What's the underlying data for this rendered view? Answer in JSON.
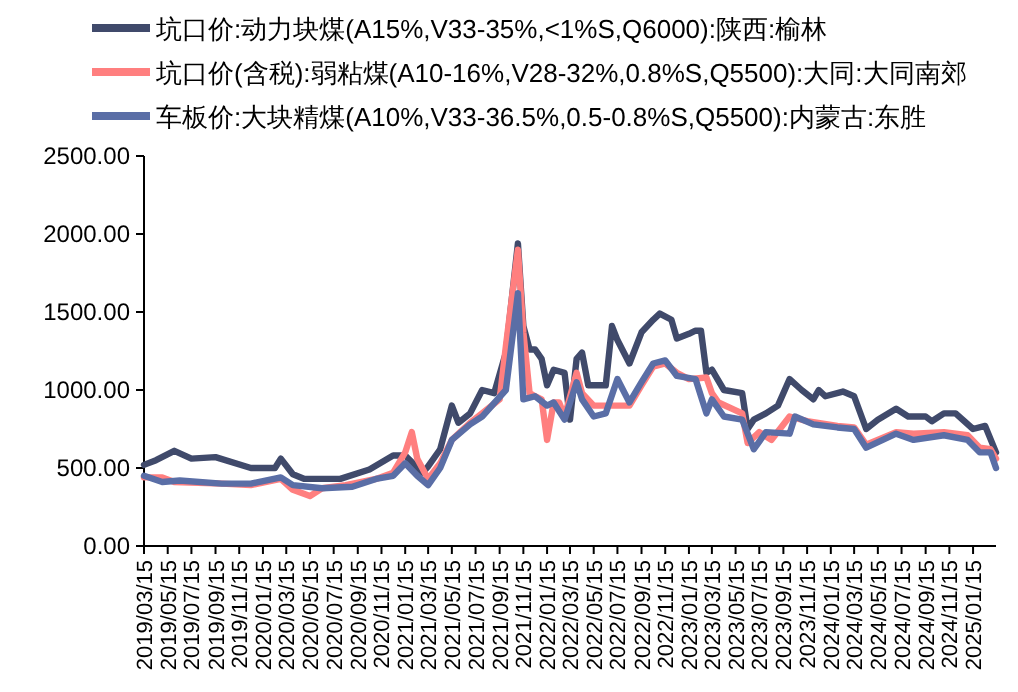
{
  "chart_data": {
    "type": "line",
    "legend": "top",
    "grid": false,
    "marker": "none",
    "line_style": "solid",
    "xlim": [
      "2019-03-15",
      "2025-03-15"
    ],
    "ylim": [
      0,
      2500
    ],
    "yticks": [
      {
        "value": 0,
        "label": "0.00"
      },
      {
        "value": 500,
        "label": "500.00"
      },
      {
        "value": 1000,
        "label": "1000.00"
      },
      {
        "value": 1500,
        "label": "1500.00"
      },
      {
        "value": 2000,
        "label": "2000.00"
      },
      {
        "value": 2500,
        "label": "2500.00"
      }
    ],
    "xticks": [
      {
        "value": "2019-03-15",
        "label": "2019/03/15"
      },
      {
        "value": "2019-05-15",
        "label": "2019/05/15"
      },
      {
        "value": "2019-07-15",
        "label": "2019/07/15"
      },
      {
        "value": "2019-09-15",
        "label": "2019/09/15"
      },
      {
        "value": "2019-11-15",
        "label": "2019/11/15"
      },
      {
        "value": "2020-01-15",
        "label": "2020/01/15"
      },
      {
        "value": "2020-03-15",
        "label": "2020/03/15"
      },
      {
        "value": "2020-05-15",
        "label": "2020/05/15"
      },
      {
        "value": "2020-07-15",
        "label": "2020/07/15"
      },
      {
        "value": "2020-09-15",
        "label": "2020/09/15"
      },
      {
        "value": "2020-11-15",
        "label": "2020/11/15"
      },
      {
        "value": "2021-01-15",
        "label": "2021/01/15"
      },
      {
        "value": "2021-03-15",
        "label": "2021/03/15"
      },
      {
        "value": "2021-05-15",
        "label": "2021/05/15"
      },
      {
        "value": "2021-07-15",
        "label": "2021/07/15"
      },
      {
        "value": "2021-09-15",
        "label": "2021/09/15"
      },
      {
        "value": "2021-11-15",
        "label": "2021/11/15"
      },
      {
        "value": "2022-01-15",
        "label": "2022/01/15"
      },
      {
        "value": "2022-03-15",
        "label": "2022/03/15"
      },
      {
        "value": "2022-05-15",
        "label": "2022/05/15"
      },
      {
        "value": "2022-07-15",
        "label": "2022/07/15"
      },
      {
        "value": "2022-09-15",
        "label": "2022/09/15"
      },
      {
        "value": "2022-11-15",
        "label": "2022/11/15"
      },
      {
        "value": "2023-01-15",
        "label": "2023/01/15"
      },
      {
        "value": "2023-03-15",
        "label": "2023/03/15"
      },
      {
        "value": "2023-05-15",
        "label": "2023/05/15"
      },
      {
        "value": "2023-07-15",
        "label": "2023/07/15"
      },
      {
        "value": "2023-09-15",
        "label": "2023/09/15"
      },
      {
        "value": "2023-11-15",
        "label": "2023/11/15"
      },
      {
        "value": "2024-01-15",
        "label": "2024/01/15"
      },
      {
        "value": "2024-03-15",
        "label": "2024/03/15"
      },
      {
        "value": "2024-05-15",
        "label": "2024/05/15"
      },
      {
        "value": "2024-07-15",
        "label": "2024/07/15"
      },
      {
        "value": "2024-09-15",
        "label": "2024/09/15"
      },
      {
        "value": "2024-11-15",
        "label": "2024/11/15"
      },
      {
        "value": "2025-01-15",
        "label": "2025/01/15"
      }
    ],
    "series": [
      {
        "name": "坑口价:动力块煤(A15%,V33-35%,<1%S,Q6000):陕西:榆林",
        "color": "#404a6b",
        "x": [
          "2019-03-15",
          "2019-04-15",
          "2019-06-01",
          "2019-07-15",
          "2019-09-15",
          "2019-12-15",
          "2020-02-15",
          "2020-03-01",
          "2020-04-01",
          "2020-05-01",
          "2020-08-01",
          "2020-10-15",
          "2020-12-15",
          "2021-01-15",
          "2021-03-01",
          "2021-03-15",
          "2021-04-15",
          "2021-05-15",
          "2021-06-01",
          "2021-07-01",
          "2021-08-01",
          "2021-09-01",
          "2021-10-01",
          "2021-11-01",
          "2021-11-15",
          "2021-12-01",
          "2021-12-15",
          "2022-01-01",
          "2022-01-15",
          "2022-02-01",
          "2022-03-01",
          "2022-03-15",
          "2022-04-01",
          "2022-04-15",
          "2022-05-01",
          "2022-06-15",
          "2022-07-01",
          "2022-07-15",
          "2022-08-15",
          "2022-09-15",
          "2022-10-15",
          "2022-11-01",
          "2022-12-01",
          "2022-12-15",
          "2023-01-15",
          "2023-02-01",
          "2023-02-15",
          "2023-03-01",
          "2023-03-15",
          "2023-04-15",
          "2023-06-01",
          "2023-06-15",
          "2023-07-01",
          "2023-08-01",
          "2023-09-01",
          "2023-10-01",
          "2023-11-01",
          "2023-12-01",
          "2023-12-15",
          "2024-01-01",
          "2024-02-15",
          "2024-03-15",
          "2024-04-15",
          "2024-05-15",
          "2024-07-01",
          "2024-08-01",
          "2024-09-15",
          "2024-10-01",
          "2024-11-01",
          "2024-12-01",
          "2025-01-15",
          "2025-02-15",
          "2025-03-15"
        ],
        "values": [
          520,
          550,
          610,
          560,
          570,
          500,
          500,
          560,
          460,
          430,
          430,
          490,
          580,
          580,
          470,
          510,
          620,
          900,
          790,
          850,
          1000,
          980,
          1240,
          1940,
          1410,
          1260,
          1260,
          1200,
          1030,
          1130,
          1110,
          810,
          1200,
          1240,
          1030,
          1030,
          1410,
          1320,
          1170,
          1370,
          1450,
          1490,
          1450,
          1330,
          1360,
          1380,
          1380,
          1110,
          1130,
          1000,
          980,
          750,
          810,
          850,
          900,
          1070,
          1000,
          940,
          1000,
          960,
          990,
          960,
          750,
          810,
          880,
          830,
          830,
          800,
          850,
          850,
          750,
          770,
          600
        ]
      },
      {
        "name": "坑口价(含税):弱粘煤(A10-16%,V28-32%,0.8%S,Q5500):大同:大同南郊",
        "color": "#ff7f7f",
        "x": [
          "2019-03-15",
          "2019-05-01",
          "2019-06-01",
          "2019-10-01",
          "2019-12-15",
          "2020-03-01",
          "2020-04-01",
          "2020-05-15",
          "2020-06-15",
          "2020-08-15",
          "2020-11-01",
          "2020-12-15",
          "2021-01-15",
          "2021-02-01",
          "2021-02-15",
          "2021-03-15",
          "2021-04-15",
          "2021-05-15",
          "2021-07-01",
          "2021-08-01",
          "2021-09-15",
          "2021-10-01",
          "2021-11-01",
          "2021-11-15",
          "2021-12-01",
          "2021-12-15",
          "2022-01-01",
          "2022-01-15",
          "2022-02-01",
          "2022-02-15",
          "2022-03-01",
          "2022-04-01",
          "2022-04-15",
          "2022-05-15",
          "2022-06-15",
          "2022-08-15",
          "2022-09-15",
          "2022-10-15",
          "2022-11-15",
          "2022-12-15",
          "2023-01-15",
          "2023-03-01",
          "2023-03-15",
          "2023-04-01",
          "2023-06-01",
          "2023-06-15",
          "2023-07-15",
          "2023-08-15",
          "2023-10-01",
          "2023-11-15",
          "2024-02-01",
          "2024-03-15",
          "2024-04-15",
          "2024-07-01",
          "2024-08-15",
          "2024-11-01",
          "2025-01-01",
          "2025-02-01",
          "2025-03-01",
          "2025-03-15"
        ],
        "values": [
          440,
          440,
          410,
          400,
          390,
          430,
          360,
          320,
          370,
          390,
          430,
          470,
          600,
          730,
          560,
          430,
          530,
          680,
          790,
          850,
          940,
          1280,
          1900,
          1370,
          980,
          960,
          940,
          680,
          920,
          920,
          830,
          1110,
          980,
          900,
          900,
          900,
          1030,
          1150,
          1170,
          1110,
          1070,
          1080,
          980,
          920,
          850,
          660,
          730,
          680,
          830,
          800,
          770,
          760,
          650,
          730,
          720,
          730,
          710,
          630,
          620,
          560
        ]
      },
      {
        "name": "车板价:大块精煤(A10%,V33-36.5%,0.5-0.8%S,Q5500):内蒙古:东胜",
        "color": "#5a6ea6",
        "x": [
          "2019-03-15",
          "2019-05-01",
          "2019-06-15",
          "2019-10-01",
          "2019-12-15",
          "2020-03-01",
          "2020-04-01",
          "2020-06-15",
          "2020-09-01",
          "2020-11-01",
          "2020-12-15",
          "2021-01-15",
          "2021-02-15",
          "2021-03-15",
          "2021-04-15",
          "2021-05-15",
          "2021-07-01",
          "2021-08-01",
          "2021-10-01",
          "2021-11-01",
          "2021-11-15",
          "2021-12-15",
          "2022-01-15",
          "2022-02-01",
          "2022-03-01",
          "2022-04-01",
          "2022-04-15",
          "2022-05-15",
          "2022-06-15",
          "2022-07-15",
          "2022-08-15",
          "2022-09-15",
          "2022-10-15",
          "2022-11-15",
          "2022-12-15",
          "2023-02-01",
          "2023-02-15",
          "2023-03-01",
          "2023-03-15",
          "2023-04-15",
          "2023-06-01",
          "2023-07-01",
          "2023-08-01",
          "2023-10-01",
          "2023-10-15",
          "2023-12-01",
          "2024-02-01",
          "2024-03-15",
          "2024-04-15",
          "2024-07-01",
          "2024-08-15",
          "2024-11-01",
          "2025-01-01",
          "2025-02-01",
          "2025-03-01",
          "2025-03-15"
        ],
        "values": [
          450,
          410,
          420,
          400,
          400,
          440,
          390,
          370,
          380,
          430,
          450,
          530,
          450,
          390,
          500,
          680,
          780,
          830,
          1000,
          1620,
          940,
          960,
          900,
          920,
          810,
          1050,
          940,
          830,
          850,
          1070,
          920,
          1050,
          1170,
          1190,
          1090,
          1070,
          960,
          850,
          940,
          830,
          810,
          620,
          730,
          720,
          830,
          780,
          760,
          750,
          630,
          720,
          680,
          710,
          680,
          600,
          600,
          500
        ]
      }
    ]
  }
}
